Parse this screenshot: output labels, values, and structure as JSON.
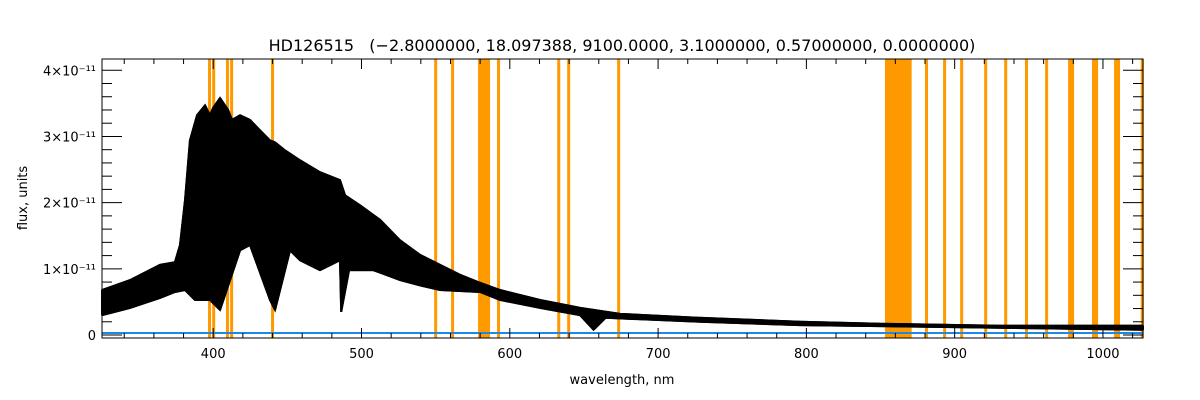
{
  "chart_data": {
    "type": "line",
    "title": "HD126515   (−2.8000000, 18.097388, 9100.0000, 3.1000000, 0.57000000, 0.0000000)",
    "xlabel": "wavelength, nm",
    "ylabel": "flux, units",
    "xlim": [
      325,
      1027
    ],
    "ylim": [
      -4.5e-13,
      4.17e-11
    ],
    "x_ticks": [
      400,
      500,
      600,
      700,
      800,
      900,
      1000
    ],
    "x_tick_labels": [
      "400",
      "500",
      "600",
      "700",
      "800",
      "900",
      "1000"
    ],
    "y_ticks": [
      0,
      1e-11,
      2e-11,
      3e-11,
      4e-11
    ],
    "y_tick_labels": [
      "0",
      "1×10⁻¹¹",
      "2×10⁻¹¹",
      "3×10⁻¹¹",
      "4×10⁻¹¹"
    ],
    "grid": false,
    "colors": {
      "spectrum": "#000000",
      "zero_line": "#1e88e5",
      "mask": "#ff9900"
    },
    "series": [
      {
        "name": "spectrum_upper_envelope",
        "unit_scale": 1e-11,
        "x": [
          325,
          343.9,
          364.1,
          374.2,
          377.6,
          381,
          384.3,
          389.1,
          394.5,
          397.8,
          399.9,
          404.6,
          410,
          412.7,
          418.1,
          424.8,
          431.6,
          438.3,
          441.7,
          448.4,
          458.5,
          472,
          485.5,
          488.9,
          499,
          512.5,
          526,
          539.5,
          553,
          566.4,
          578.6,
          593.4,
          620.4,
          647.4,
          674.3,
          728.3,
          795.7,
          849.7,
          930.6,
          1027
        ],
        "y": [
          0.68,
          0.83,
          1.06,
          1.1,
          1.36,
          2.04,
          2.94,
          3.32,
          3.47,
          3.32,
          3.43,
          3.58,
          3.4,
          3.25,
          3.32,
          3.25,
          3.09,
          2.94,
          2.91,
          2.79,
          2.64,
          2.46,
          2.34,
          2.11,
          1.96,
          1.74,
          1.43,
          1.21,
          1.06,
          0.91,
          0.8,
          0.68,
          0.53,
          0.41,
          0.32,
          0.26,
          0.2,
          0.17,
          0.14,
          0.14
        ]
      },
      {
        "name": "spectrum_lower_envelope",
        "unit_scale": 1e-11,
        "x": [
          325,
          343.9,
          364.1,
          374.2,
          381,
          387.7,
          397.8,
          404.6,
          418.1,
          424.8,
          438.3,
          441.7,
          451.8,
          458.5,
          472,
          485.5,
          486.3,
          491.6,
          508,
          526,
          539.5,
          553,
          580,
          593.4,
          620.4,
          647.4,
          656.5,
          664.6,
          728.3,
          795.7,
          1027
        ],
        "y": [
          0.3,
          0.41,
          0.56,
          0.65,
          0.68,
          0.53,
          0.53,
          0.38,
          1.28,
          1.36,
          0.53,
          0.38,
          1.28,
          1.13,
          0.98,
          1.13,
          0.35,
          0.98,
          0.98,
          0.83,
          0.75,
          0.68,
          0.65,
          0.53,
          0.41,
          0.3,
          0.08,
          0.26,
          0.2,
          0.15,
          0.08
        ]
      },
      {
        "name": "zero_line",
        "x": [
          325,
          1027
        ],
        "y": [
          0,
          0
        ]
      }
    ],
    "masked_regions_nm": [
      [
        396.5,
        398.3
      ],
      [
        399.3,
        401
      ],
      [
        408.6,
        410.3
      ],
      [
        411.4,
        413
      ],
      [
        439,
        440.5
      ],
      [
        549,
        550.6
      ],
      [
        560.4,
        562
      ],
      [
        578.6,
        586.7
      ],
      [
        591.4,
        593
      ],
      [
        632,
        633.5
      ],
      [
        638.7,
        640.3
      ],
      [
        672.4,
        674
      ],
      [
        853,
        871
      ],
      [
        880,
        881.6
      ],
      [
        892.2,
        893.8
      ],
      [
        903.7,
        905.3
      ],
      [
        919.9,
        921.5
      ],
      [
        933.4,
        935
      ],
      [
        947.4,
        949
      ],
      [
        961,
        962.6
      ],
      [
        976.5,
        980.5
      ],
      [
        992.6,
        996.7
      ],
      [
        1007.5,
        1011.5
      ],
      [
        1025.5,
        1027
      ]
    ]
  }
}
